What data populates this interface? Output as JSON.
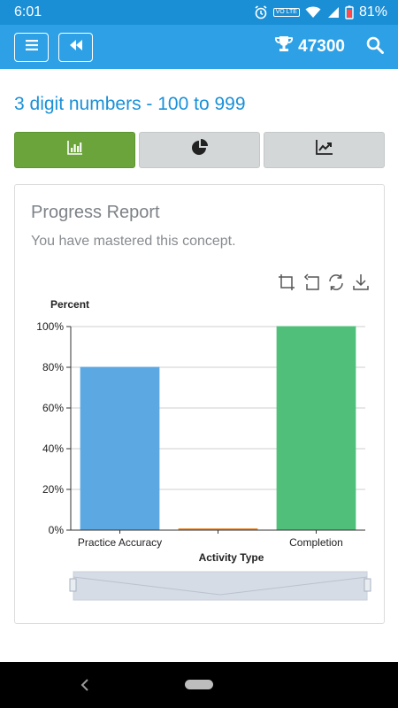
{
  "status_bar": {
    "time": "6:01",
    "battery": "81%",
    "network_badge": "VO LTE"
  },
  "app_bar": {
    "score": "47300"
  },
  "page": {
    "title": "3 digit numbers - 100 to 999"
  },
  "tabs": [
    {
      "name": "bar-chart",
      "active": true
    },
    {
      "name": "pie-chart",
      "active": false
    },
    {
      "name": "trend-chart",
      "active": false
    }
  ],
  "report": {
    "title": "Progress Report",
    "subtitle": "You have mastered this concept.",
    "toolbox": [
      "area-zoom-icon",
      "zoom-reset-icon",
      "restore-icon",
      "download-icon"
    ]
  },
  "chart_data": {
    "type": "bar",
    "ylabel": "Percent",
    "xlabel": "Activity Type",
    "categories": [
      "Practice Accuracy",
      "",
      "Completion"
    ],
    "values": [
      80,
      0,
      100
    ],
    "ylim": [
      0,
      100
    ],
    "yticks": [
      "0%",
      "20%",
      "40%",
      "60%",
      "80%",
      "100%"
    ],
    "grid": true,
    "colors": [
      "#5ba8e3",
      "#e8892c",
      "#4fbf7a"
    ],
    "has_zoom_slider": true
  },
  "colors": {
    "primary": "#2ea1e6",
    "title": "#1a90d8",
    "active_tab": "#6aa43a"
  }
}
